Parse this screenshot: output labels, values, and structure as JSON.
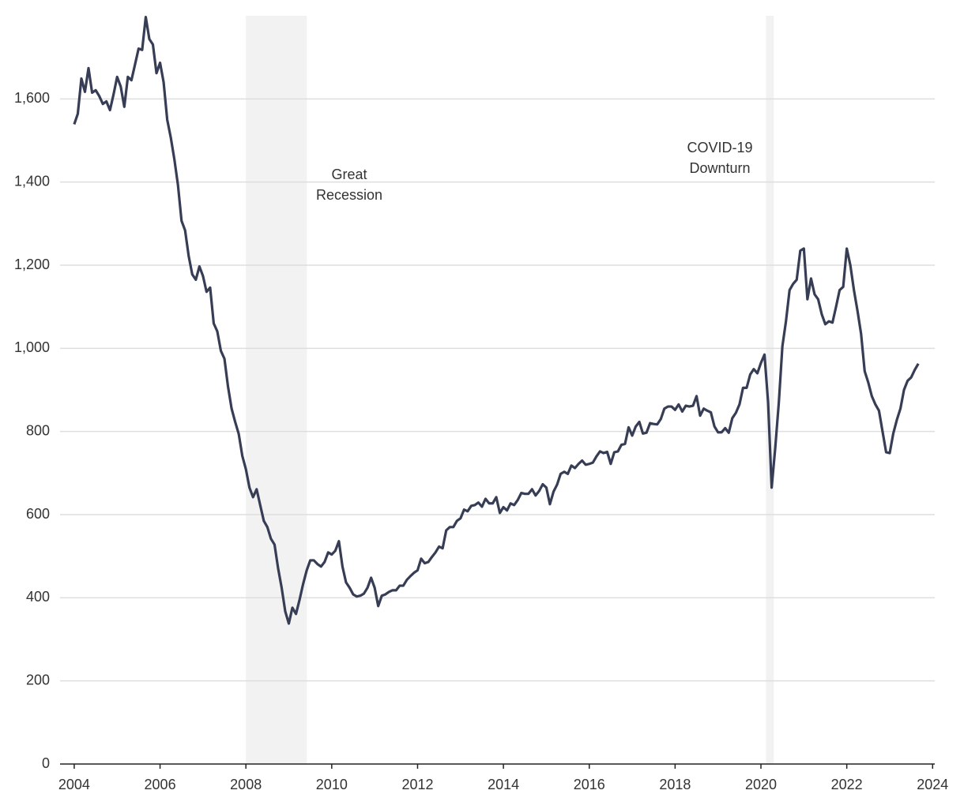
{
  "chart_data": {
    "type": "line",
    "x": [
      2004,
      2004.083,
      2004.167,
      2004.25,
      2004.333,
      2004.417,
      2004.5,
      2004.583,
      2004.667,
      2004.75,
      2004.833,
      2004.917,
      2005,
      2005.083,
      2005.167,
      2005.25,
      2005.333,
      2005.417,
      2005.5,
      2005.583,
      2005.667,
      2005.75,
      2005.833,
      2005.917,
      2006,
      2006.083,
      2006.167,
      2006.25,
      2006.333,
      2006.417,
      2006.5,
      2006.583,
      2006.667,
      2006.75,
      2006.833,
      2006.917,
      2007,
      2007.083,
      2007.167,
      2007.25,
      2007.333,
      2007.417,
      2007.5,
      2007.583,
      2007.667,
      2007.75,
      2007.833,
      2007.917,
      2008,
      2008.083,
      2008.167,
      2008.25,
      2008.333,
      2008.417,
      2008.5,
      2008.583,
      2008.667,
      2008.75,
      2008.833,
      2008.917,
      2009,
      2009.083,
      2009.167,
      2009.25,
      2009.333,
      2009.417,
      2009.5,
      2009.583,
      2009.667,
      2009.75,
      2009.833,
      2009.917,
      2010,
      2010.083,
      2010.167,
      2010.25,
      2010.333,
      2010.417,
      2010.5,
      2010.583,
      2010.667,
      2010.75,
      2010.833,
      2010.917,
      2011,
      2011.083,
      2011.167,
      2011.25,
      2011.333,
      2011.417,
      2011.5,
      2011.583,
      2011.667,
      2011.75,
      2011.833,
      2011.917,
      2012,
      2012.083,
      2012.167,
      2012.25,
      2012.333,
      2012.417,
      2012.5,
      2012.583,
      2012.667,
      2012.75,
      2012.833,
      2012.917,
      2013,
      2013.083,
      2013.167,
      2013.25,
      2013.333,
      2013.417,
      2013.5,
      2013.583,
      2013.667,
      2013.75,
      2013.833,
      2013.917,
      2014,
      2014.083,
      2014.167,
      2014.25,
      2014.333,
      2014.417,
      2014.5,
      2014.583,
      2014.667,
      2014.75,
      2014.833,
      2014.917,
      2015,
      2015.083,
      2015.167,
      2015.25,
      2015.333,
      2015.417,
      2015.5,
      2015.583,
      2015.667,
      2015.75,
      2015.833,
      2015.917,
      2016,
      2016.083,
      2016.167,
      2016.25,
      2016.333,
      2016.417,
      2016.5,
      2016.583,
      2016.667,
      2016.75,
      2016.833,
      2016.917,
      2017,
      2017.083,
      2017.167,
      2017.25,
      2017.333,
      2017.417,
      2017.5,
      2017.583,
      2017.667,
      2017.75,
      2017.833,
      2017.917,
      2018,
      2018.083,
      2018.167,
      2018.25,
      2018.333,
      2018.417,
      2018.5,
      2018.583,
      2018.667,
      2018.75,
      2018.833,
      2018.917,
      2019,
      2019.083,
      2019.167,
      2019.25,
      2019.333,
      2019.417,
      2019.5,
      2019.583,
      2019.667,
      2019.75,
      2019.833,
      2019.917,
      2020,
      2020.083,
      2020.167,
      2020.25,
      2020.333,
      2020.417,
      2020.5,
      2020.583,
      2020.667,
      2020.75,
      2020.833,
      2020.917,
      2021,
      2021.083,
      2021.167,
      2021.25,
      2021.333,
      2021.417,
      2021.5,
      2021.583,
      2021.667,
      2021.75,
      2021.833,
      2021.917,
      2022,
      2022.083,
      2022.167,
      2022.25,
      2022.333,
      2022.417,
      2022.5,
      2022.583,
      2022.667,
      2022.75,
      2022.833,
      2022.917,
      2023,
      2023.083,
      2023.167,
      2023.25,
      2023.333,
      2023.417,
      2023.5,
      2023.583,
      2023.667
    ],
    "series": [
      {
        "color": "#363d54",
        "values": [
          1539,
          1564,
          1649,
          1617,
          1674,
          1615,
          1621,
          1607,
          1588,
          1594,
          1573,
          1611,
          1653,
          1630,
          1581,
          1653,
          1645,
          1683,
          1721,
          1718,
          1797,
          1744,
          1731,
          1662,
          1687,
          1640,
          1550,
          1507,
          1455,
          1393,
          1307,
          1284,
          1222,
          1178,
          1165,
          1197,
          1174,
          1136,
          1146,
          1060,
          1041,
          994,
          975,
          908,
          855,
          823,
          794,
          741,
          709,
          665,
          642,
          661,
          623,
          585,
          570,
          542,
          528,
          471,
          424,
          367,
          338,
          376,
          361,
          395,
          433,
          466,
          490,
          490,
          481,
          475,
          486,
          509,
          504,
          513,
          536,
          475,
          437,
          424,
          408,
          403,
          405,
          410,
          424,
          448,
          424,
          380,
          405,
          408,
          414,
          418,
          418,
          429,
          429,
          443,
          452,
          460,
          466,
          494,
          483,
          486,
          498,
          509,
          523,
          519,
          562,
          570,
          570,
          585,
          591,
          612,
          608,
          621,
          623,
          629,
          619,
          638,
          627,
          627,
          642,
          604,
          618,
          610,
          627,
          623,
          635,
          652,
          650,
          650,
          661,
          646,
          657,
          673,
          665,
          625,
          655,
          672,
          698,
          703,
          698,
          718,
          712,
          722,
          730,
          720,
          722,
          725,
          740,
          752,
          748,
          751,
          722,
          750,
          752,
          768,
          770,
          810,
          790,
          812,
          823,
          795,
          797,
          820,
          818,
          817,
          830,
          855,
          860,
          860,
          852,
          865,
          848,
          862,
          860,
          862,
          885,
          838,
          855,
          850,
          846,
          812,
          798,
          798,
          808,
          797,
          832,
          845,
          865,
          905,
          905,
          937,
          950,
          940,
          965,
          985,
          870,
          665,
          760,
          870,
          1005,
          1065,
          1140,
          1155,
          1165,
          1235,
          1240,
          1118,
          1168,
          1130,
          1118,
          1082,
          1058,
          1065,
          1062,
          1100,
          1140,
          1148,
          1240,
          1200,
          1140,
          1090,
          1035,
          945,
          918,
          885,
          865,
          850,
          800,
          750,
          748,
          795,
          828,
          855,
          900,
          922,
          930,
          948,
          963
        ]
      }
    ],
    "xlim": [
      2003.67,
      2024.05
    ],
    "xticks": [
      2004,
      2006,
      2008,
      2010,
      2012,
      2014,
      2016,
      2018,
      2020,
      2022,
      2024
    ],
    "ylim": [
      0,
      1800
    ],
    "yticks": [
      0,
      200,
      400,
      600,
      800,
      {
        "value": 1000,
        "label": "1,000"
      },
      {
        "value": 1200,
        "label": "1,200"
      },
      {
        "value": 1400,
        "label": "1,400"
      },
      {
        "value": 1600,
        "label": "1,600"
      }
    ],
    "grid": true,
    "shaded_periods": [
      {
        "start": 2008.0,
        "end": 2009.42,
        "label": [
          "Great",
          "Recession"
        ]
      },
      {
        "start": 2020.12,
        "end": 2020.3,
        "label": [
          "COVID-19",
          "Downturn"
        ]
      }
    ]
  }
}
